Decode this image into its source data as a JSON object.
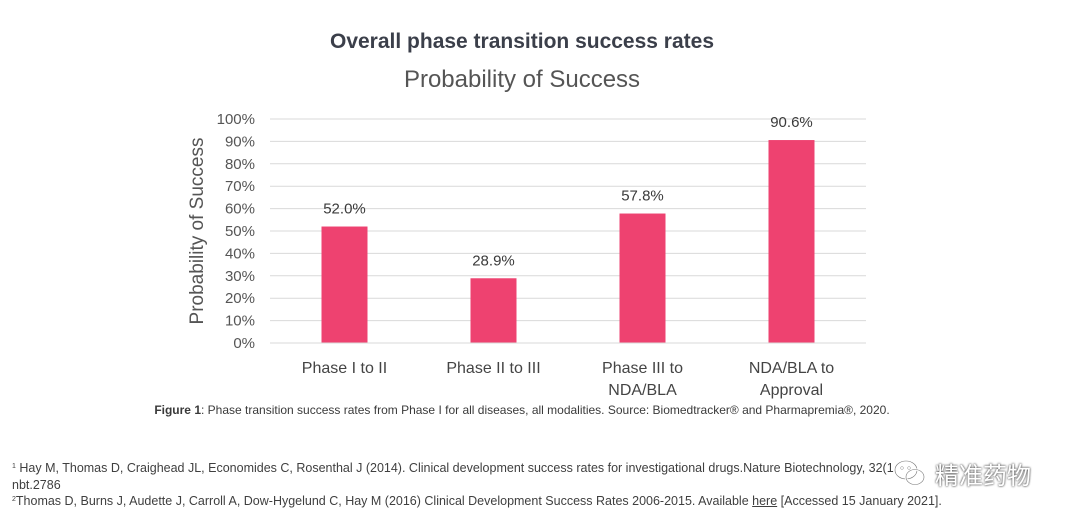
{
  "chart_data": {
    "type": "bar",
    "heading": "Overall phase transition success rates",
    "title": "Probability of Success",
    "ylabel": "Probability of Success",
    "xlabel": "",
    "ylim": [
      0,
      100
    ],
    "yticks": [
      "0%",
      "10%",
      "20%",
      "30%",
      "40%",
      "50%",
      "60%",
      "70%",
      "80%",
      "90%",
      "100%"
    ],
    "categories": [
      [
        "Phase I to II"
      ],
      [
        "Phase II to III"
      ],
      [
        "Phase III to",
        "NDA/BLA"
      ],
      [
        "NDA/BLA to",
        "Approval"
      ]
    ],
    "values": [
      52.0,
      28.9,
      57.8,
      90.6
    ],
    "data_labels": [
      "52.0%",
      "28.9%",
      "57.8%",
      "90.6%"
    ],
    "bar_color": "#ee4270",
    "grid": true,
    "legend": "none"
  },
  "caption": {
    "label": "Figure 1",
    "text": ": Phase transition success rates from Phase I for all diseases, all modalities. Source: Biomedtracker® and Pharmapremia®, 2020."
  },
  "footnotes": {
    "fn1_mark": "1",
    "fn1_line1": "Hay M, Thomas D, Craighead JL, Economides C, Rosenthal J (2014). Clinical development success rates for investigational drugs.Nature Biotechnology, 32(1",
    "fn1_line2": "nbt.2786",
    "fn2_mark": "2",
    "fn2_text": "Thomas D, Burns J, Audette J, Carroll A, Dow-Hygelund C, Hay M (2016) Clinical Development Success Rates 2006-2015. Available ",
    "fn2_link": "here",
    "fn2_tail": " [Accessed 15 January 2021]."
  },
  "watermark": {
    "text": "精准药物",
    "icon": "wechat-icon"
  }
}
